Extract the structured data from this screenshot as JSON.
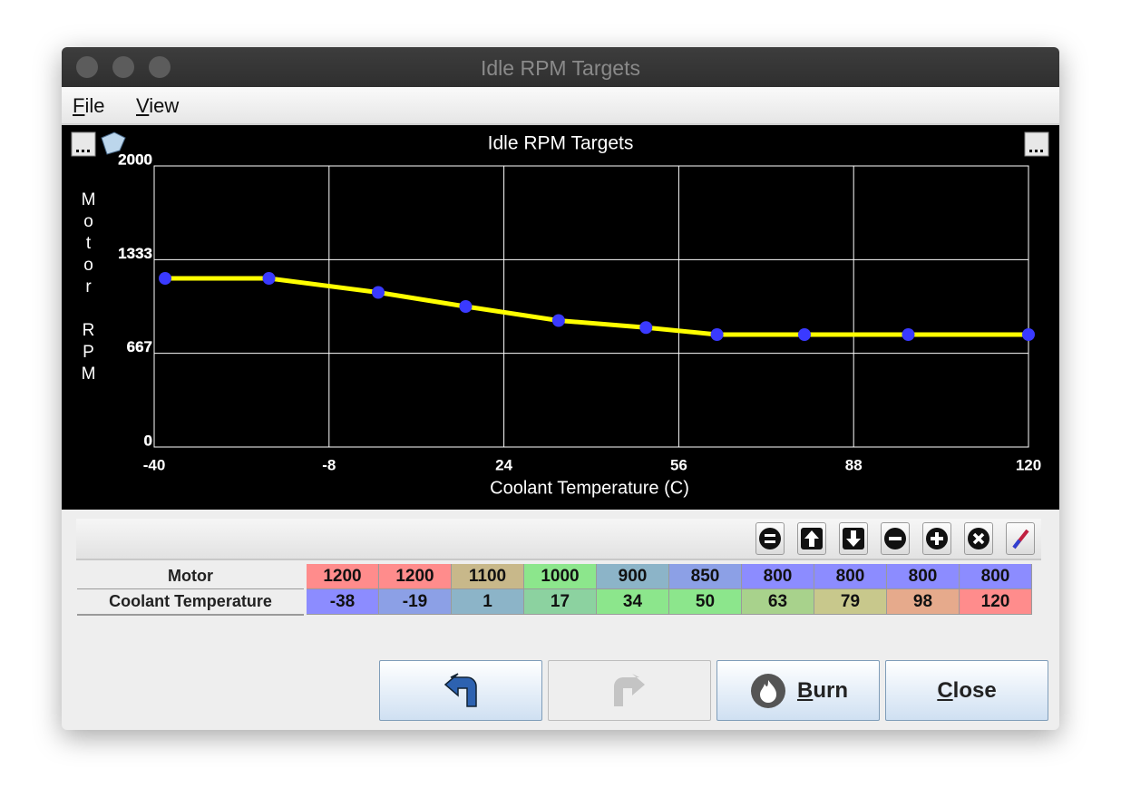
{
  "window": {
    "title": "Idle RPM Targets"
  },
  "menu": [
    "File",
    "View"
  ],
  "chart_data": {
    "type": "line",
    "title": "Idle RPM Targets",
    "x_label": "Coolant Temperature (C)",
    "y_label": "Motor RPM",
    "x": [
      -38,
      -19,
      1,
      17,
      34,
      50,
      63,
      79,
      98,
      120
    ],
    "values": [
      1200,
      1200,
      1100,
      1000,
      900,
      850,
      800,
      800,
      800,
      800
    ],
    "color": "#ffff00",
    "marker_color": "#3a3aff",
    "xlim": [
      -40,
      120
    ],
    "ylim": [
      0,
      2000
    ],
    "xticks": [
      -40,
      -8,
      24,
      56,
      88,
      120
    ],
    "yticks": [
      0,
      667,
      1333,
      2000
    ],
    "grid": true
  },
  "table": {
    "row_labels": [
      "Motor",
      "Coolant Temperature"
    ],
    "cell_colors": [
      [
        "#ff8c8c",
        "#ff8c8c",
        "#c8b88a",
        "#8ce68c",
        "#8cb4c8",
        "#8ca0e6",
        "#8c8cff",
        "#8c8cff",
        "#8c8cff",
        "#8c8cff"
      ],
      [
        "#8c8cff",
        "#8ca0e6",
        "#8cb4c8",
        "#8cd2a0",
        "#8ce68c",
        "#8ce68c",
        "#a8d28c",
        "#c8c88c",
        "#e6aa8c",
        "#ff8c8c"
      ]
    ]
  },
  "buttons": [
    "Burn",
    "Close"
  ]
}
